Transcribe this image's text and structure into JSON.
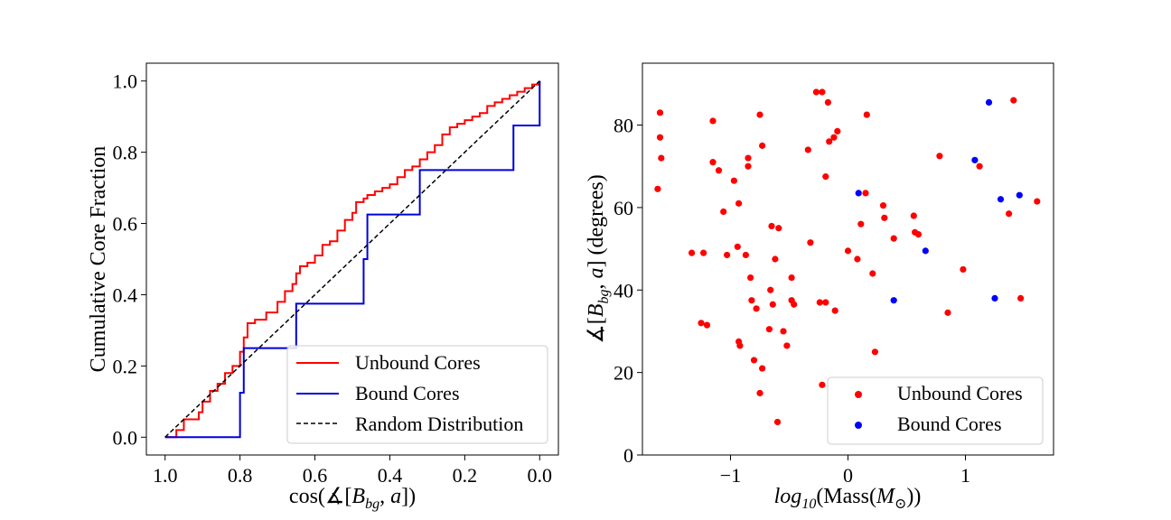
{
  "chart_data": [
    {
      "type": "line",
      "title": "",
      "xlabel": "cos(∡[B_bg, a])",
      "ylabel": "Cumulative Core Fraction",
      "xlim": [
        1.05,
        -0.05
      ],
      "ylim": [
        -0.05,
        1.05
      ],
      "xticks": [
        "1.0",
        "0.8",
        "0.6",
        "0.4",
        "0.2",
        "0.0"
      ],
      "yticks": [
        "0.0",
        "0.2",
        "0.4",
        "0.6",
        "0.8",
        "1.0"
      ],
      "legend_position": "lower-right",
      "series": [
        {
          "name": "Unbound Cores",
          "color": "#ff0000",
          "style": "step",
          "x": [
            1.0,
            0.97,
            0.95,
            0.91,
            0.9,
            0.88,
            0.86,
            0.84,
            0.82,
            0.8,
            0.79,
            0.78,
            0.76,
            0.73,
            0.7,
            0.68,
            0.66,
            0.65,
            0.64,
            0.62,
            0.6,
            0.58,
            0.56,
            0.54,
            0.52,
            0.5,
            0.49,
            0.47,
            0.46,
            0.44,
            0.42,
            0.4,
            0.38,
            0.36,
            0.34,
            0.32,
            0.3,
            0.28,
            0.26,
            0.24,
            0.22,
            0.2,
            0.18,
            0.16,
            0.14,
            0.12,
            0.1,
            0.08,
            0.06,
            0.04,
            0.02,
            0.0
          ],
          "y": [
            0.0,
            0.02,
            0.05,
            0.07,
            0.1,
            0.13,
            0.15,
            0.18,
            0.2,
            0.24,
            0.28,
            0.32,
            0.33,
            0.35,
            0.38,
            0.41,
            0.43,
            0.46,
            0.48,
            0.49,
            0.51,
            0.54,
            0.55,
            0.58,
            0.61,
            0.63,
            0.66,
            0.67,
            0.68,
            0.69,
            0.7,
            0.71,
            0.73,
            0.75,
            0.76,
            0.78,
            0.8,
            0.82,
            0.85,
            0.87,
            0.88,
            0.89,
            0.9,
            0.91,
            0.93,
            0.94,
            0.95,
            0.96,
            0.97,
            0.98,
            0.99,
            1.0
          ]
        },
        {
          "name": "Bound Cores",
          "color": "#0000dd",
          "style": "step",
          "x": [
            1.0,
            0.8,
            0.79,
            0.65,
            0.47,
            0.46,
            0.32,
            0.07,
            0.0
          ],
          "y": [
            0.0,
            0.125,
            0.25,
            0.375,
            0.5,
            0.625,
            0.75,
            0.875,
            1.0
          ]
        },
        {
          "name": "Random Distribution",
          "color": "#000000",
          "style": "dashed",
          "x": [
            1.0,
            0.0
          ],
          "y": [
            0.0,
            1.0
          ]
        }
      ]
    },
    {
      "type": "scatter",
      "title": "",
      "xlabel": "log10(Mass(M⊙))",
      "ylabel": "∡[B_bg, a] (degrees)",
      "xlim": [
        -1.75,
        1.75
      ],
      "ylim": [
        0,
        95
      ],
      "xticks": [
        "−1",
        "0",
        "1"
      ],
      "yticks": [
        "0",
        "20",
        "40",
        "60",
        "80"
      ],
      "legend_position": "lower-right",
      "series": [
        {
          "name": "Unbound Cores",
          "color": "#ff0000",
          "points": [
            [
              -1.62,
              64.5
            ],
            [
              -1.6,
              83
            ],
            [
              -1.6,
              77
            ],
            [
              -1.59,
              72
            ],
            [
              -1.33,
              49
            ],
            [
              -1.25,
              32
            ],
            [
              -1.23,
              49
            ],
            [
              -1.2,
              31.5
            ],
            [
              -1.15,
              81
            ],
            [
              -1.15,
              71
            ],
            [
              -1.1,
              69
            ],
            [
              -1.06,
              59
            ],
            [
              -1.03,
              48.5
            ],
            [
              -0.97,
              66.5
            ],
            [
              -0.94,
              50.5
            ],
            [
              -0.93,
              61
            ],
            [
              -0.93,
              27.5
            ],
            [
              -0.92,
              26.5
            ],
            [
              -0.87,
              48.5
            ],
            [
              -0.85,
              72
            ],
            [
              -0.85,
              70
            ],
            [
              -0.83,
              43
            ],
            [
              -0.82,
              37.5
            ],
            [
              -0.8,
              23
            ],
            [
              -0.78,
              35.5
            ],
            [
              -0.75,
              82.5
            ],
            [
              -0.75,
              15
            ],
            [
              -0.73,
              75
            ],
            [
              -0.73,
              21
            ],
            [
              -0.67,
              30.5
            ],
            [
              -0.66,
              40
            ],
            [
              -0.65,
              55.5
            ],
            [
              -0.64,
              36.5
            ],
            [
              -0.62,
              47.5
            ],
            [
              -0.6,
              8
            ],
            [
              -0.59,
              55
            ],
            [
              -0.55,
              30
            ],
            [
              -0.52,
              26.5
            ],
            [
              -0.48,
              43
            ],
            [
              -0.48,
              37.5
            ],
            [
              -0.46,
              36.5
            ],
            [
              -0.34,
              74
            ],
            [
              -0.32,
              51.5
            ],
            [
              -0.27,
              88
            ],
            [
              -0.24,
              37
            ],
            [
              -0.22,
              88
            ],
            [
              -0.22,
              17
            ],
            [
              -0.19,
              37
            ],
            [
              -0.19,
              67.5
            ],
            [
              -0.17,
              85.5
            ],
            [
              -0.16,
              76
            ],
            [
              -0.12,
              77
            ],
            [
              -0.11,
              35
            ],
            [
              -0.09,
              78.5
            ],
            [
              0.0,
              49.5
            ],
            [
              0.08,
              47.5
            ],
            [
              0.11,
              56
            ],
            [
              0.15,
              63.5
            ],
            [
              0.16,
              82.5
            ],
            [
              0.21,
              44
            ],
            [
              0.23,
              25
            ],
            [
              0.3,
              60.5
            ],
            [
              0.31,
              57.5
            ],
            [
              0.39,
              52.5
            ],
            [
              0.56,
              58
            ],
            [
              0.57,
              54
            ],
            [
              0.6,
              53.5
            ],
            [
              0.78,
              72.5
            ],
            [
              0.85,
              34.5
            ],
            [
              0.98,
              45
            ],
            [
              1.12,
              70
            ],
            [
              1.37,
              58.5
            ],
            [
              1.41,
              86
            ],
            [
              1.47,
              38
            ],
            [
              1.61,
              61.5
            ]
          ]
        },
        {
          "name": "Bound Cores",
          "color": "#0000ff",
          "points": [
            [
              0.09,
              63.5
            ],
            [
              0.39,
              37.5
            ],
            [
              0.66,
              49.5
            ],
            [
              1.08,
              71.5
            ],
            [
              1.2,
              85.5
            ],
            [
              1.25,
              38
            ],
            [
              1.3,
              62
            ],
            [
              1.46,
              63
            ]
          ]
        }
      ]
    }
  ],
  "left_legend": [
    "Unbound Cores",
    "Bound Cores",
    "Random Distribution"
  ],
  "right_legend": [
    "Unbound Cores",
    "Bound Cores"
  ]
}
